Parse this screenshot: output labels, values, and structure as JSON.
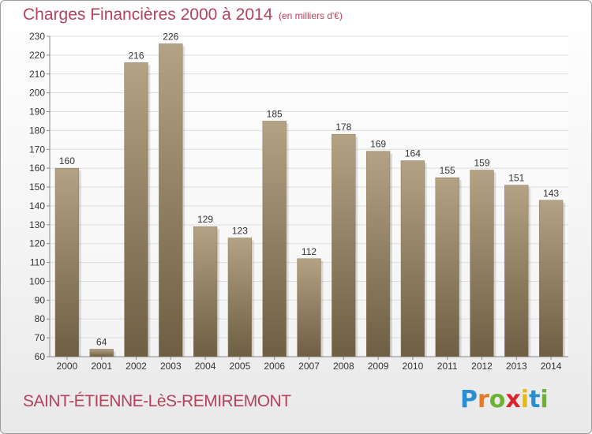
{
  "header": {
    "title": "Charges Financières 2000 à 2014",
    "unit": "(en milliers d'€)"
  },
  "footer": {
    "commune": "SAINT-ÉTIENNE-LèS-REMIREMONT",
    "brand": "Proxiti",
    "brand_letters": [
      "P",
      "r",
      "o",
      "x",
      "i",
      "t",
      "i"
    ],
    "brand_colors": [
      "#2a8fd1",
      "#e5792a",
      "#6bb235",
      "#d8262d",
      "#e3b81c",
      "#2a8fd1",
      "#6bb235"
    ]
  },
  "colors": {
    "bar_top": "#b3a283",
    "bar_bottom": "#6e5e43",
    "grid": "#dddddd",
    "axis": "#888888",
    "text": "#333333",
    "accent": "#b5415e"
  },
  "chart_data": {
    "type": "bar",
    "title": "Charges Financières 2000 à 2014",
    "subtitle": "(en milliers d'€)",
    "xlabel": "",
    "ylabel": "",
    "categories": [
      "2000",
      "2001",
      "2002",
      "2003",
      "2004",
      "2005",
      "2006",
      "2007",
      "2008",
      "2009",
      "2010",
      "2011",
      "2012",
      "2013",
      "2014"
    ],
    "values": [
      160,
      64,
      216,
      226,
      129,
      123,
      185,
      112,
      178,
      169,
      164,
      155,
      159,
      151,
      143
    ],
    "ylim": [
      60,
      230
    ],
    "yticks": [
      60,
      70,
      80,
      90,
      100,
      110,
      120,
      130,
      140,
      150,
      160,
      170,
      180,
      190,
      200,
      210,
      220,
      230
    ],
    "grid": true,
    "legend": "none"
  }
}
